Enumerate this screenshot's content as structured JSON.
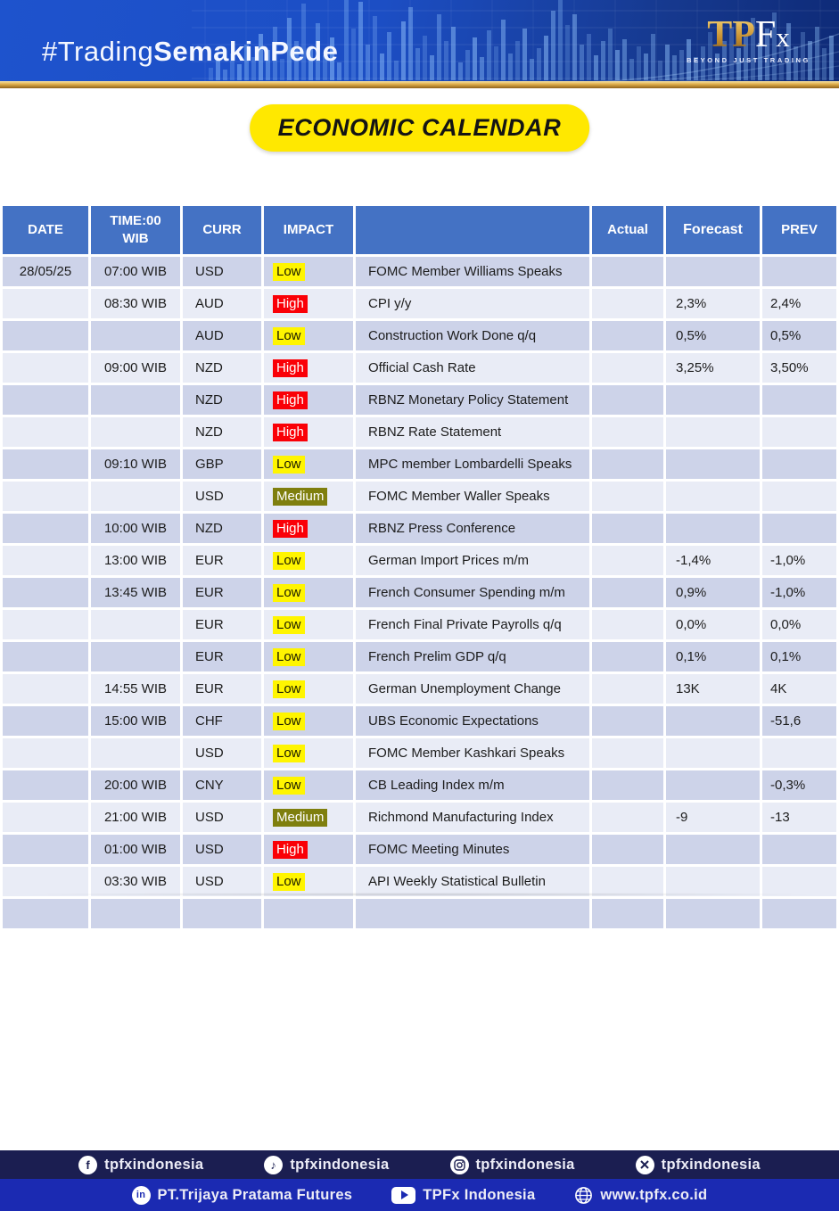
{
  "header": {
    "hashtag_light": "#Trading",
    "hashtag_bold": "SemakinPede",
    "logo_tp": "TP",
    "logo_f": "F",
    "logo_x": "x",
    "tagline": "BEYOND JUST TRADING"
  },
  "title": "ECONOMIC CALENDAR",
  "table": {
    "header": {
      "date": "DATE",
      "time_line1": "TIME:00",
      "time_line2": "WIB",
      "curr": "CURR",
      "impact": "IMPACT",
      "event": "",
      "actual": "Actual",
      "forecast": "Forecast",
      "prev": "PREV"
    },
    "rows": [
      {
        "date": "28/05/25",
        "time": "07:00 WIB",
        "curr": "USD",
        "impact": "Low",
        "event": "FOMC Member Williams Speaks",
        "actual": "",
        "forecast": "",
        "prev": ""
      },
      {
        "date": "",
        "time": "08:30 WIB",
        "curr": "AUD",
        "impact": "High",
        "event": "CPI y/y",
        "actual": "",
        "forecast": "2,3%",
        "prev": "2,4%"
      },
      {
        "date": "",
        "time": "",
        "curr": "AUD",
        "impact": "Low",
        "event": "Construction Work Done q/q",
        "actual": "",
        "forecast": "0,5%",
        "prev": "0,5%"
      },
      {
        "date": "",
        "time": "09:00 WIB",
        "curr": "NZD",
        "impact": "High",
        "event": "Official Cash Rate",
        "actual": "",
        "forecast": "3,25%",
        "prev": "3,50%"
      },
      {
        "date": "",
        "time": "",
        "curr": "NZD",
        "impact": "High",
        "event": "RBNZ Monetary Policy Statement",
        "actual": "",
        "forecast": "",
        "prev": ""
      },
      {
        "date": "",
        "time": "",
        "curr": "NZD",
        "impact": "High",
        "event": "RBNZ Rate Statement",
        "actual": "",
        "forecast": "",
        "prev": ""
      },
      {
        "date": "",
        "time": "09:10 WIB",
        "curr": "GBP",
        "impact": "Low",
        "event": "MPC member Lombardelli Speaks",
        "actual": "",
        "forecast": "",
        "prev": ""
      },
      {
        "date": "",
        "time": "",
        "curr": "USD",
        "impact": "Medium",
        "event": "FOMC Member Waller Speaks",
        "actual": "",
        "forecast": "",
        "prev": ""
      },
      {
        "date": "",
        "time": "10:00 WIB",
        "curr": "NZD",
        "impact": "High",
        "event": "RBNZ Press Conference",
        "actual": "",
        "forecast": "",
        "prev": ""
      },
      {
        "date": "",
        "time": "13:00 WIB",
        "curr": "EUR",
        "impact": "Low",
        "event": "German Import Prices m/m",
        "actual": "",
        "forecast": "-1,4%",
        "prev": "-1,0%"
      },
      {
        "date": "",
        "time": "13:45 WIB",
        "curr": "EUR",
        "impact": "Low",
        "event": "French Consumer Spending m/m",
        "actual": "",
        "forecast": "0,9%",
        "prev": "-1,0%"
      },
      {
        "date": "",
        "time": "",
        "curr": "EUR",
        "impact": "Low",
        "event": "French Final Private Payrolls q/q",
        "actual": "",
        "forecast": "0,0%",
        "prev": "0,0%"
      },
      {
        "date": "",
        "time": "",
        "curr": "EUR",
        "impact": "Low",
        "event": "French Prelim GDP q/q",
        "actual": "",
        "forecast": "0,1%",
        "prev": "0,1%"
      },
      {
        "date": "",
        "time": "14:55 WIB",
        "curr": "EUR",
        "impact": "Low",
        "event": "German Unemployment Change",
        "actual": "",
        "forecast": "13K",
        "prev": "4K"
      },
      {
        "date": "",
        "time": "15:00 WIB",
        "curr": "CHF",
        "impact": "Low",
        "event": "UBS Economic Expectations",
        "actual": "",
        "forecast": "",
        "prev": "-51,6"
      },
      {
        "date": "",
        "time": "",
        "curr": "USD",
        "impact": "Low",
        "event": "FOMC Member Kashkari Speaks",
        "actual": "",
        "forecast": "",
        "prev": ""
      },
      {
        "date": "",
        "time": "20:00 WIB",
        "curr": "CNY",
        "impact": "Low",
        "event": "CB Leading Index m/m",
        "actual": "",
        "forecast": "",
        "prev": "-0,3%"
      },
      {
        "date": "",
        "time": "21:00 WIB",
        "curr": "USD",
        "impact": "Medium",
        "event": "Richmond Manufacturing Index",
        "actual": "",
        "forecast": "-9",
        "prev": "-13"
      },
      {
        "date": "",
        "time": "01:00 WIB",
        "curr": "USD",
        "impact": "High",
        "event": "FOMC Meeting Minutes",
        "actual": "",
        "forecast": "",
        "prev": ""
      },
      {
        "date": "",
        "time": "03:30 WIB",
        "curr": "USD",
        "impact": "Low",
        "event": "API Weekly Statistical Bulletin",
        "actual": "",
        "forecast": "",
        "prev": ""
      },
      {
        "date": "",
        "time": "",
        "curr": "",
        "impact": "",
        "event": "",
        "actual": "",
        "forecast": "",
        "prev": ""
      }
    ]
  },
  "impact_colors": {
    "Low": {
      "bg": "#FFF500",
      "text": "#1a1a00"
    },
    "Medium": {
      "bg": "#7F7F0E",
      "text": "#FFFFFF"
    },
    "High": {
      "bg": "#FA0007",
      "text": "#FFFFFF"
    }
  },
  "colors": {
    "table_header_bg": "#4472C4",
    "row_dark": "#CDD3E9",
    "row_light": "#E9ECF6",
    "title_bg": "#FFE800",
    "footer_bar1_bg": "#1B1E51",
    "footer_bar2_bg": "#1B2AB2",
    "gold_strip": "#DDAB47"
  },
  "footer": {
    "row1": [
      {
        "icon": "facebook-icon",
        "label": "tpfxindonesia"
      },
      {
        "icon": "tiktok-icon",
        "label": "tpfxindonesia"
      },
      {
        "icon": "instagram-icon",
        "label": "tpfxindonesia"
      },
      {
        "icon": "x-icon",
        "label": "tpfxindonesia"
      }
    ],
    "row2": [
      {
        "icon": "linkedin-icon",
        "label": "PT.Trijaya Pratama Futures"
      },
      {
        "icon": "youtube-icon",
        "label": "TPFx Indonesia"
      },
      {
        "icon": "globe-icon",
        "label": "www.tpfx.co.id"
      }
    ]
  }
}
